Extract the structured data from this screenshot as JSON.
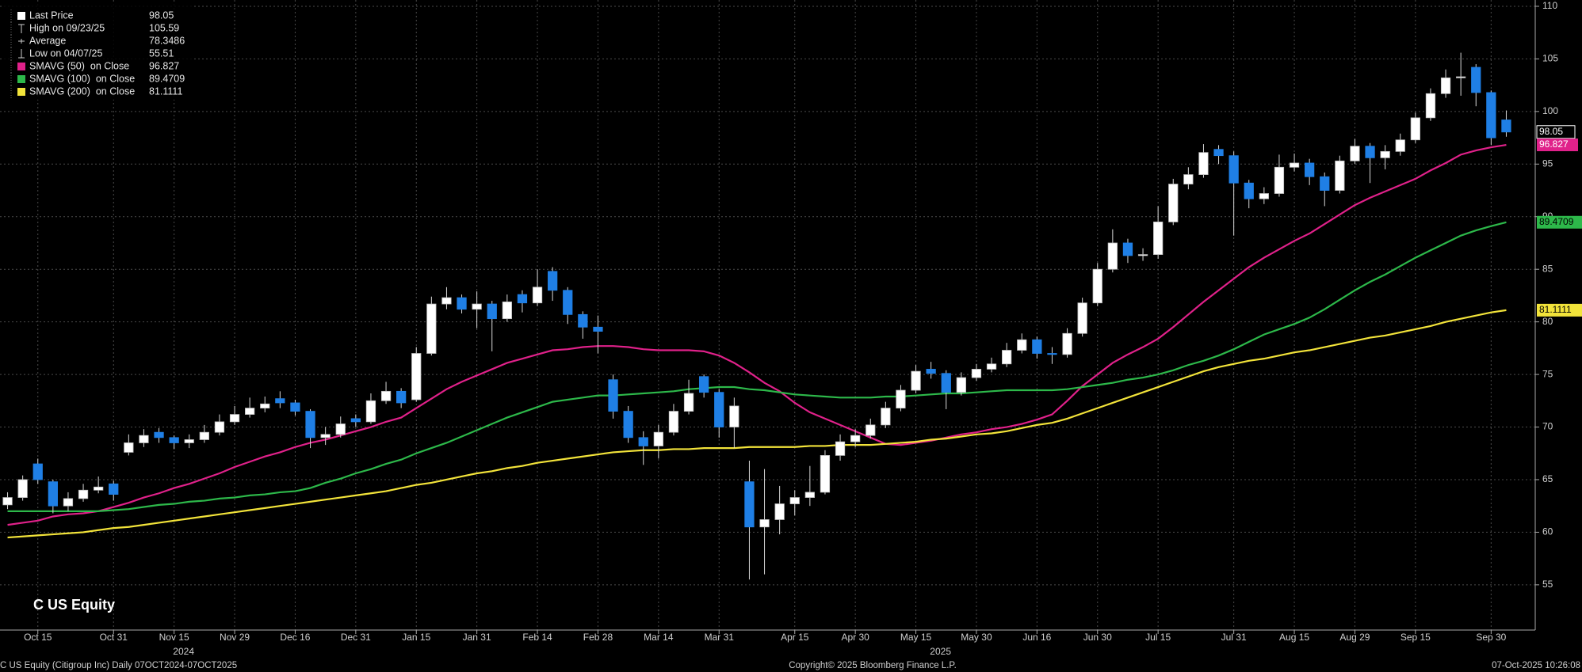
{
  "chart_data": {
    "type": "candlestick",
    "title": "C US Equity",
    "footer": {
      "left": "C US Equity (Citigroup Inc) Daily 07OCT2024-07OCT2025",
      "center": "Copyright© 2025 Bloomberg Finance L.P.",
      "right": "07-Oct-2025 10:26:08"
    },
    "x_group_labels": [
      "2024",
      "2025"
    ],
    "legend_labels": {
      "last_price": "Last Price",
      "high": "High on 09/23/25",
      "average": "Average",
      "low": "Low on 04/07/25"
    },
    "average": 78.3486,
    "categories": [
      null,
      null,
      "Oct 15",
      null,
      null,
      null,
      null,
      "Oct 31",
      null,
      null,
      null,
      "Nov 15",
      null,
      null,
      null,
      "Nov 29",
      null,
      null,
      null,
      "Dec 16",
      null,
      null,
      null,
      "Dec 31",
      null,
      null,
      null,
      "Jan 15",
      null,
      null,
      null,
      "Jan 31",
      null,
      null,
      null,
      "Feb 14",
      null,
      null,
      null,
      "Feb 28",
      null,
      null,
      null,
      "Mar 14",
      null,
      null,
      null,
      "Mar 31",
      null,
      null,
      null,
      null,
      "Apr 15",
      null,
      null,
      null,
      "Apr 30",
      null,
      null,
      null,
      "May 15",
      null,
      null,
      null,
      "May 30",
      null,
      null,
      null,
      "Jun 16",
      null,
      null,
      null,
      "Jun 30",
      null,
      null,
      null,
      "Jul 15",
      null,
      null,
      null,
      null,
      "Jul 31",
      null,
      null,
      null,
      "Aug 15",
      null,
      null,
      null,
      "Aug 29",
      null,
      null,
      null,
      "Sep 15",
      null,
      null,
      null,
      null,
      "Sep 30",
      null
    ],
    "open": [
      62.6,
      63.3,
      66.5,
      64.8,
      62.5,
      63.2,
      64.0,
      64.6,
      67.6,
      68.5,
      69.5,
      69.0,
      68.5,
      68.8,
      69.5,
      70.5,
      71.2,
      71.8,
      72.7,
      72.3,
      71.5,
      69.0,
      69.3,
      70.8,
      70.5,
      72.5,
      73.4,
      72.6,
      77.0,
      81.7,
      82.3,
      81.2,
      81.7,
      80.3,
      82.6,
      81.8,
      84.8,
      83.0,
      80.7,
      79.5,
      74.5,
      71.5,
      69.0,
      68.2,
      69.5,
      71.5,
      74.8,
      73.3,
      70.0,
      64.8,
      60.5,
      61.2,
      62.7,
      63.3,
      63.8,
      67.3,
      68.6,
      69.2,
      70.2,
      71.8,
      73.5,
      75.5,
      75.1,
      73.3,
      74.7,
      75.5,
      76.0,
      77.3,
      78.3,
      77.0,
      76.9,
      78.9,
      81.8,
      85.0,
      87.5,
      86.3,
      86.4,
      89.5,
      93.1,
      94.0,
      96.4,
      95.8,
      93.2,
      91.7,
      92.2,
      94.7,
      95.1,
      93.8,
      92.5,
      95.3,
      96.7,
      95.6,
      96.2,
      97.3,
      99.4,
      101.7,
      103.2,
      104.2,
      101.8,
      99.2
    ],
    "high": [
      63.8,
      65.4,
      67.0,
      65.0,
      63.8,
      64.6,
      65.3,
      64.9,
      69.3,
      69.8,
      69.9,
      69.2,
      69.3,
      70.2,
      71.2,
      72.0,
      72.8,
      72.9,
      73.4,
      72.6,
      71.7,
      70.0,
      71.0,
      71.2,
      73.2,
      74.3,
      73.7,
      77.6,
      82.4,
      83.3,
      82.6,
      82.9,
      82.0,
      82.6,
      83.0,
      85.0,
      85.2,
      83.3,
      81.0,
      80.6,
      75.0,
      72.0,
      69.6,
      70.2,
      72.2,
      74.5,
      75.0,
      73.6,
      72.8,
      66.8,
      66.0,
      64.4,
      64.0,
      66.3,
      67.8,
      69.3,
      69.8,
      70.8,
      72.4,
      74.0,
      75.9,
      76.2,
      75.4,
      75.2,
      76.0,
      76.6,
      78.0,
      78.9,
      78.6,
      77.6,
      79.4,
      82.3,
      85.6,
      88.8,
      87.9,
      87.0,
      91.0,
      93.6,
      94.7,
      96.9,
      96.8,
      96.2,
      93.5,
      92.8,
      95.9,
      96.0,
      95.5,
      94.2,
      95.8,
      97.4,
      97.0,
      96.8,
      97.9,
      99.9,
      102.2,
      104.0,
      105.59,
      104.5,
      102.0,
      100.1
    ],
    "low": [
      62.2,
      63.0,
      64.6,
      61.8,
      62.0,
      62.9,
      63.7,
      63.0,
      67.3,
      68.1,
      68.5,
      67.9,
      68.0,
      68.5,
      69.2,
      70.2,
      70.9,
      71.4,
      71.8,
      71.1,
      68.0,
      68.3,
      69.0,
      70.0,
      70.3,
      72.2,
      71.8,
      72.4,
      76.8,
      81.2,
      80.8,
      79.4,
      77.2,
      80.0,
      80.9,
      81.5,
      82.0,
      79.8,
      78.4,
      77.0,
      70.8,
      68.5,
      66.4,
      67.0,
      69.2,
      71.2,
      72.8,
      69.0,
      68.0,
      55.51,
      56.0,
      59.8,
      61.6,
      62.5,
      63.6,
      66.8,
      68.1,
      68.9,
      69.9,
      71.5,
      73.2,
      74.6,
      71.7,
      73.0,
      74.4,
      75.2,
      75.7,
      77.0,
      76.5,
      76.0,
      76.6,
      78.6,
      81.5,
      84.7,
      85.6,
      85.8,
      86.0,
      89.2,
      92.6,
      93.7,
      95.0,
      88.2,
      90.8,
      91.2,
      91.9,
      94.3,
      93.0,
      91.0,
      92.2,
      95.0,
      93.2,
      94.5,
      95.8,
      97.0,
      99.1,
      101.3,
      101.5,
      100.5,
      96.8,
      97.6
    ],
    "close": [
      63.3,
      65.0,
      65.0,
      62.5,
      63.2,
      64.0,
      64.3,
      63.6,
      68.5,
      69.2,
      69.0,
      68.5,
      68.8,
      69.5,
      70.5,
      71.2,
      71.8,
      72.2,
      72.3,
      71.5,
      69.0,
      69.3,
      70.3,
      70.5,
      72.5,
      73.4,
      72.3,
      77.0,
      81.7,
      82.3,
      81.2,
      81.7,
      80.3,
      81.9,
      81.8,
      83.3,
      83.0,
      80.7,
      79.5,
      79.1,
      71.5,
      69.0,
      68.2,
      69.5,
      71.5,
      73.2,
      73.3,
      70.0,
      72.0,
      60.5,
      61.2,
      62.7,
      63.3,
      63.8,
      67.3,
      68.6,
      69.2,
      70.2,
      71.8,
      73.5,
      75.3,
      75.1,
      73.3,
      74.7,
      75.5,
      76.0,
      77.3,
      78.3,
      77.0,
      76.9,
      78.9,
      81.8,
      85.0,
      87.5,
      86.3,
      86.4,
      89.5,
      93.1,
      94.0,
      96.1,
      95.8,
      93.2,
      91.7,
      92.2,
      94.7,
      95.1,
      93.8,
      92.5,
      95.3,
      96.7,
      95.6,
      96.2,
      97.3,
      99.4,
      101.7,
      103.2,
      103.3,
      101.8,
      97.5,
      98.05
    ],
    "up_color": "#ffffff",
    "down_color": "#1f7fe5",
    "series": [
      {
        "name": "SMAVG (50)  on Close",
        "color": "#e0218a",
        "values": [
          60.7,
          60.9,
          61.1,
          61.5,
          61.7,
          61.8,
          62.0,
          62.4,
          62.8,
          63.3,
          63.7,
          64.2,
          64.6,
          65.1,
          65.6,
          66.2,
          66.7,
          67.2,
          67.6,
          68.1,
          68.5,
          68.8,
          69.2,
          69.6,
          70.0,
          70.5,
          70.9,
          71.8,
          72.7,
          73.6,
          74.3,
          74.9,
          75.5,
          76.1,
          76.5,
          76.9,
          77.3,
          77.4,
          77.6,
          77.7,
          77.7,
          77.6,
          77.4,
          77.3,
          77.3,
          77.3,
          77.2,
          76.8,
          76.1,
          75.2,
          74.2,
          73.4,
          72.3,
          71.4,
          70.8,
          70.2,
          69.6,
          69.0,
          68.4,
          68.3,
          68.5,
          68.7,
          69.0,
          69.3,
          69.5,
          69.8,
          70.0,
          70.3,
          70.7,
          71.2,
          72.5,
          73.9,
          75.0,
          76.1,
          76.9,
          77.6,
          78.4,
          79.5,
          80.7,
          81.9,
          83.0,
          84.1,
          85.2,
          86.1,
          86.9,
          87.7,
          88.4,
          89.3,
          90.2,
          91.1,
          91.8,
          92.4,
          93.0,
          93.6,
          94.4,
          95.1,
          95.9,
          96.3,
          96.6,
          96.827
        ]
      },
      {
        "name": "SMAVG (100)  on Close",
        "color": "#2db84a",
        "values": [
          62.0,
          62.0,
          62.0,
          62.0,
          62.0,
          62.0,
          62.0,
          62.1,
          62.2,
          62.4,
          62.6,
          62.7,
          62.9,
          63.0,
          63.2,
          63.3,
          63.5,
          63.6,
          63.8,
          63.9,
          64.2,
          64.7,
          65.1,
          65.6,
          66.0,
          66.5,
          66.9,
          67.5,
          68.0,
          68.5,
          69.1,
          69.7,
          70.3,
          70.9,
          71.4,
          71.9,
          72.4,
          72.6,
          72.8,
          73.0,
          73.0,
          73.1,
          73.2,
          73.3,
          73.4,
          73.6,
          73.7,
          73.8,
          73.8,
          73.6,
          73.5,
          73.3,
          73.1,
          73.0,
          72.9,
          72.8,
          72.8,
          72.8,
          72.9,
          72.9,
          73.0,
          73.1,
          73.2,
          73.2,
          73.3,
          73.4,
          73.5,
          73.5,
          73.5,
          73.5,
          73.6,
          73.8,
          74.0,
          74.2,
          74.5,
          74.7,
          75.0,
          75.4,
          75.9,
          76.3,
          76.8,
          77.4,
          78.1,
          78.8,
          79.3,
          79.8,
          80.4,
          81.2,
          82.1,
          83.0,
          83.8,
          84.5,
          85.3,
          86.1,
          86.8,
          87.5,
          88.2,
          88.7,
          89.1,
          89.4709
        ]
      },
      {
        "name": "SMAVG (200)  on Close",
        "color": "#f2e33a",
        "values": [
          59.5,
          59.6,
          59.7,
          59.8,
          59.9,
          60.0,
          60.2,
          60.4,
          60.5,
          60.7,
          60.9,
          61.1,
          61.3,
          61.5,
          61.7,
          61.9,
          62.1,
          62.3,
          62.5,
          62.7,
          62.9,
          63.1,
          63.3,
          63.5,
          63.7,
          63.9,
          64.2,
          64.5,
          64.7,
          65.0,
          65.3,
          65.6,
          65.8,
          66.1,
          66.3,
          66.6,
          66.8,
          67.0,
          67.2,
          67.4,
          67.6,
          67.7,
          67.8,
          67.8,
          67.9,
          67.9,
          68.0,
          68.0,
          68.0,
          68.1,
          68.1,
          68.1,
          68.1,
          68.2,
          68.2,
          68.3,
          68.3,
          68.3,
          68.4,
          68.5,
          68.6,
          68.8,
          68.9,
          69.1,
          69.3,
          69.4,
          69.6,
          69.9,
          70.2,
          70.4,
          70.8,
          71.3,
          71.8,
          72.3,
          72.8,
          73.3,
          73.8,
          74.3,
          74.8,
          75.3,
          75.7,
          76.0,
          76.3,
          76.5,
          76.8,
          77.1,
          77.3,
          77.6,
          77.9,
          78.2,
          78.5,
          78.7,
          79.0,
          79.3,
          79.6,
          80.0,
          80.3,
          80.6,
          80.9,
          81.1111
        ]
      }
    ],
    "ylim": [
      50.7,
      110.6
    ],
    "yticks": [
      55,
      60,
      65,
      70,
      75,
      80,
      85,
      90,
      95,
      100,
      105,
      110
    ],
    "grid": true
  }
}
